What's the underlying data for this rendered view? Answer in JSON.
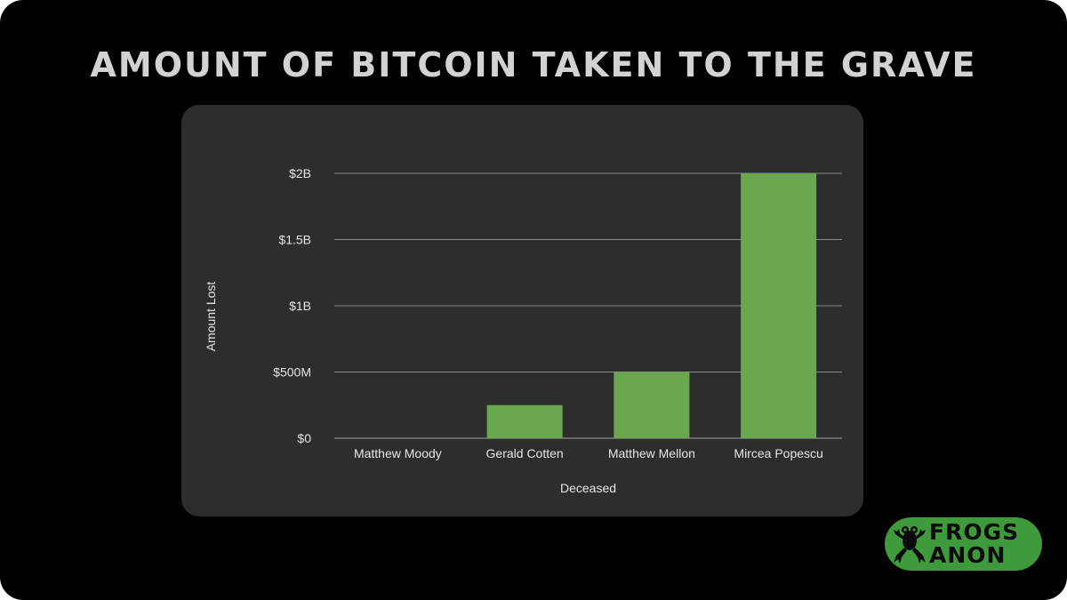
{
  "header": {
    "title": "AMOUNT OF BITCOIN TAKEN TO THE GRAVE"
  },
  "colors": {
    "background": "#000000",
    "panel": "#2d2d2d",
    "bar": "#6aa84f",
    "grid": "#8c8c8c",
    "text": "#e6e6e6",
    "logo_bg": "#3f9a3c"
  },
  "chart_data": {
    "type": "bar",
    "title": "AMOUNT OF BITCOIN TAKEN TO THE GRAVE",
    "categories": [
      "Matthew Moody",
      "Gerald Cotten",
      "Matthew Mellon",
      "Mircea Popescu"
    ],
    "values": [
      0,
      250000000,
      500000000,
      2000000000
    ],
    "xlabel": "Deceased",
    "ylabel": "Amount Lost",
    "ylim": [
      0,
      2000000000
    ],
    "yticks": [
      0,
      500000000,
      1000000000,
      1500000000,
      2000000000
    ],
    "ytick_labels": [
      "$0",
      "$500M",
      "$1B",
      "$1.5B",
      "$2B"
    ],
    "grid": true,
    "legend": "none"
  },
  "logo": {
    "line1": "FROGS",
    "line2": "ANON",
    "icon": "frog-icon"
  }
}
